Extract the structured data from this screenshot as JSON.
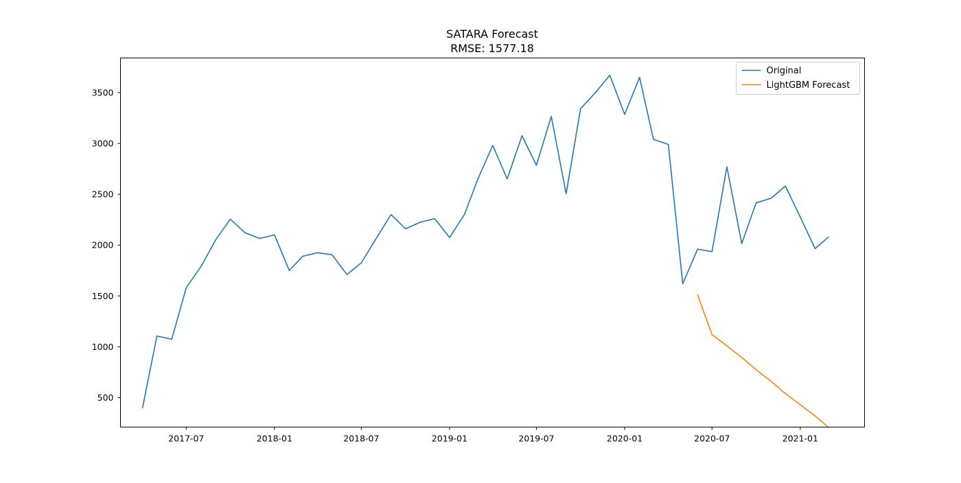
{
  "chart_data": {
    "type": "line",
    "title": "SATARA Forecast",
    "subtitle": "RMSE: 1577.18",
    "xlabel": "",
    "ylabel": "",
    "xlim": [
      "2017-02-14",
      "2021-05-15"
    ],
    "ylim": [
      210,
      3840
    ],
    "x_ticks": [
      "2017-07",
      "2018-01",
      "2018-07",
      "2019-01",
      "2019-07",
      "2020-01",
      "2020-07",
      "2021-01"
    ],
    "y_ticks": [
      500,
      1000,
      1500,
      2000,
      2500,
      3000,
      3500
    ],
    "grid": false,
    "legend_position": "top-right",
    "series": [
      {
        "name": "Original",
        "color": "#1f77b4",
        "x": [
          "2017-04-01",
          "2017-05-01",
          "2017-06-01",
          "2017-07-01",
          "2017-08-01",
          "2017-09-01",
          "2017-10-01",
          "2017-11-01",
          "2017-12-01",
          "2018-01-01",
          "2018-02-01",
          "2018-03-01",
          "2018-04-01",
          "2018-05-01",
          "2018-06-01",
          "2018-07-01",
          "2018-08-01",
          "2018-09-01",
          "2018-10-01",
          "2018-11-01",
          "2018-12-01",
          "2019-01-01",
          "2019-02-01",
          "2019-03-01",
          "2019-04-01",
          "2019-05-01",
          "2019-06-01",
          "2019-07-01",
          "2019-08-01",
          "2019-09-01",
          "2019-10-01",
          "2019-11-01",
          "2019-12-01",
          "2020-01-01",
          "2020-02-01",
          "2020-03-01",
          "2020-04-01",
          "2020-05-01",
          "2020-06-01",
          "2020-07-01",
          "2020-08-01",
          "2020-09-01",
          "2020-10-01",
          "2020-11-01",
          "2020-12-01",
          "2021-01-01",
          "2021-02-01",
          "2021-03-01"
        ],
        "values": [
          400,
          1105,
          1075,
          1580,
          1790,
          2055,
          2255,
          2120,
          2065,
          2100,
          1750,
          1890,
          1925,
          1905,
          1710,
          1825,
          2065,
          2300,
          2160,
          2225,
          2260,
          2075,
          2300,
          2650,
          2980,
          2650,
          3075,
          2785,
          3265,
          2505,
          3340,
          3500,
          3670,
          3285,
          3650,
          3040,
          2990,
          1620,
          1960,
          1935,
          2770,
          2015,
          2415,
          2460,
          2580,
          2275,
          1965,
          2080
        ]
      },
      {
        "name": "LightGBM Forecast",
        "color": "#ff7f0e",
        "x": [
          "2020-06-01",
          "2020-07-01",
          "2020-08-01",
          "2020-09-01",
          "2020-10-01",
          "2020-11-01",
          "2020-12-01",
          "2021-01-01",
          "2021-02-01",
          "2021-03-01"
        ],
        "values": [
          1510,
          1120,
          1010,
          895,
          775,
          660,
          540,
          430,
          320,
          205
        ]
      }
    ]
  }
}
